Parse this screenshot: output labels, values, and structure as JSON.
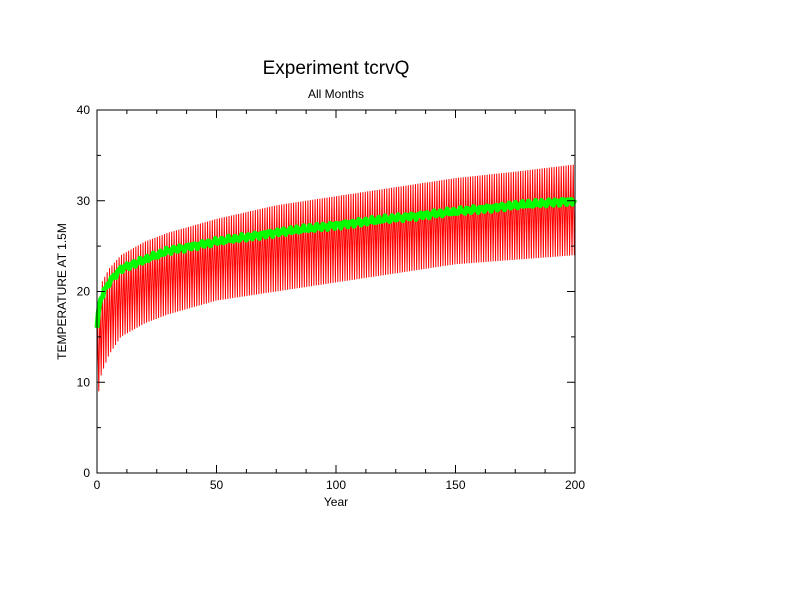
{
  "chart_data": {
    "type": "line",
    "title": "Experiment tcrvQ",
    "subtitle": "All Months",
    "xlabel": "Year",
    "ylabel": "TEMPERATURE AT 1.5M",
    "xlim": [
      0,
      200
    ],
    "ylim": [
      0,
      40
    ],
    "x_ticks": [
      0,
      50,
      100,
      150,
      200
    ],
    "y_ticks": [
      0,
      10,
      20,
      30,
      40
    ],
    "grid": false,
    "legend": "none",
    "series": [
      {
        "kind": "monthly-envelope",
        "color": "#ff0000",
        "x": [
          0,
          1,
          2,
          5,
          10,
          20,
          30,
          50,
          75,
          100,
          125,
          150,
          175,
          200
        ],
        "low": [
          6,
          10,
          11,
          13,
          15,
          16.5,
          17.5,
          19,
          20,
          21,
          22,
          23,
          23.5,
          24
        ],
        "high": [
          17,
          19,
          21,
          22.5,
          24,
          25.5,
          26.5,
          28,
          29.5,
          30.5,
          31.5,
          32.5,
          33.2,
          34
        ]
      },
      {
        "kind": "annual-mean",
        "color": "#00ff00",
        "x": [
          0,
          1,
          2,
          5,
          10,
          20,
          30,
          50,
          75,
          100,
          125,
          150,
          175,
          200
        ],
        "y": [
          16,
          18.5,
          19.5,
          21,
          22.5,
          23.5,
          24.5,
          25.5,
          26.5,
          27.3,
          28.1,
          28.8,
          29.5,
          30
        ]
      }
    ]
  },
  "colors": {
    "background": "#ffffff",
    "axis": "#000000",
    "monthly": "#ff0000",
    "annual": "#00ff00"
  }
}
